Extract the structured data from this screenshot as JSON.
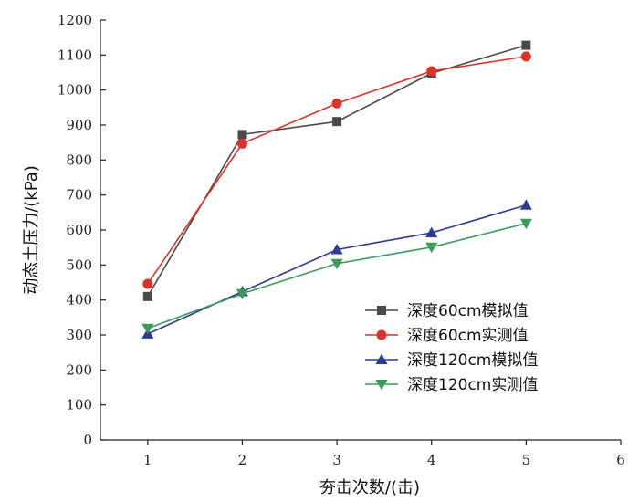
{
  "chart_data": {
    "type": "line",
    "title": "",
    "xlabel": "夯击次数/(击)",
    "ylabel": "动态土压力/(kPa)",
    "xlim": [
      0.5,
      6
    ],
    "ylim": [
      0,
      1200
    ],
    "x_ticks": [
      "1",
      "2",
      "3",
      "4",
      "5",
      "6"
    ],
    "y_ticks": [
      "0",
      "100",
      "200",
      "300",
      "400",
      "500",
      "600",
      "700",
      "800",
      "900",
      "1000",
      "1100",
      "1200"
    ],
    "grid": false,
    "legend_position": "bottom-right",
    "x": [
      1,
      2,
      3,
      4,
      5
    ],
    "series": [
      {
        "name": "深度60cm模拟值",
        "values": [
          410,
          873,
          910,
          1048,
          1128
        ],
        "color": "#4a4a4a",
        "marker": "square"
      },
      {
        "name": "深度60cm实测值",
        "values": [
          446,
          847,
          962,
          1054,
          1096
        ],
        "color": "#d9332b",
        "marker": "circle"
      },
      {
        "name": "深度120cm模拟值",
        "values": [
          303,
          424,
          544,
          592,
          671
        ],
        "color": "#2b3c97",
        "marker": "triangle-up"
      },
      {
        "name": "深度120cm实测值",
        "values": [
          319,
          418,
          504,
          551,
          619
        ],
        "color": "#3b9a5a",
        "marker": "triangle-down"
      }
    ]
  }
}
